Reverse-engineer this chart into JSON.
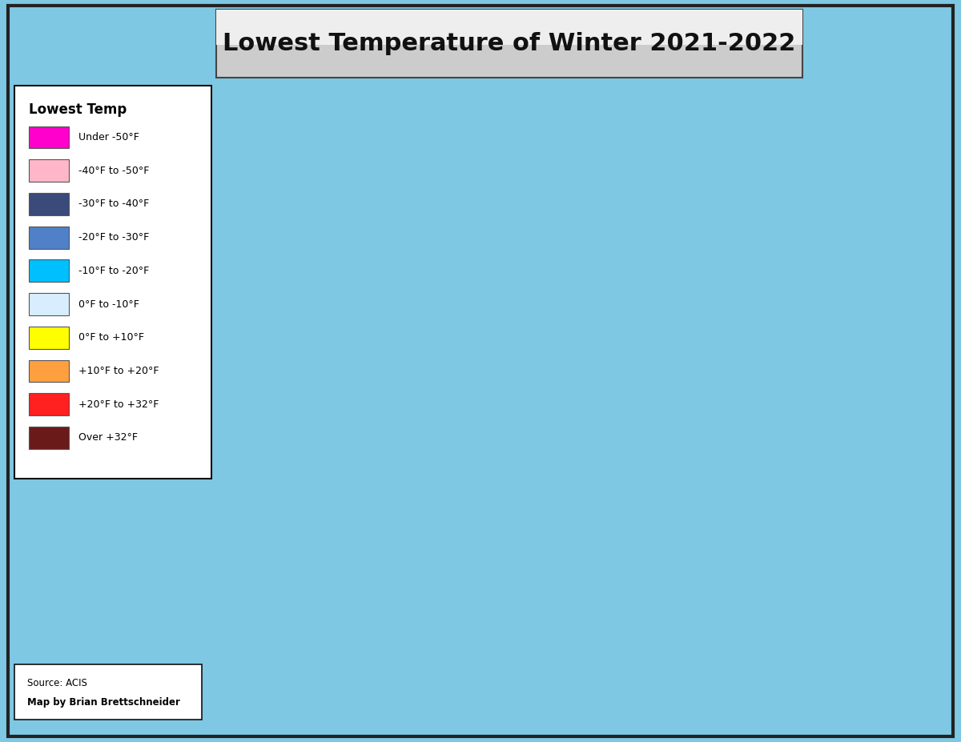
{
  "title": "Lowest Temperature of Winter 2021-2022",
  "title_fontsize": 22,
  "background_color": "#87CEEB",
  "ocean_color": "#7ec8e3",
  "legend_title": "Lowest Temp",
  "legend_items": [
    {
      "label": "Under -50°F",
      "color": "#FF00CC"
    },
    {
      "label": "-40°F to -50°F",
      "color": "#FFB6C8"
    },
    {
      "label": "-30°F to -40°F",
      "color": "#3A4A7A"
    },
    {
      "label": "-20°F to -30°F",
      "color": "#5080C8"
    },
    {
      "label": "-10°F to -20°F",
      "color": "#00BFFF"
    },
    {
      "label": "0°F to -10°F",
      "color": "#D8EEFF"
    },
    {
      "label": "0°F to +10°F",
      "color": "#FFFF00"
    },
    {
      "label": "+10°F to +20°F",
      "color": "#FFA040"
    },
    {
      "label": "+20°F to +32°F",
      "color": "#FF2020"
    },
    {
      "label": "Over +32°F",
      "color": "#6B1A1A"
    }
  ],
  "source_line1": "Source: ACIS",
  "source_line2": "Map by Brian Brettschneider",
  "fig_width": 12.0,
  "fig_height": 9.27,
  "dpi": 100,
  "extent": [
    -170,
    -50,
    20,
    85
  ]
}
